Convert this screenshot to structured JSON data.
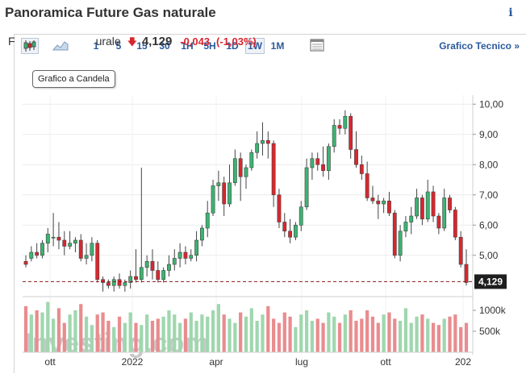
{
  "header": {
    "title": "Panoramica Future Gas naturale",
    "info_icon": "i"
  },
  "toolbar": {
    "candle_icon": "candlestick-chart-icon",
    "area_icon": "area-chart-icon",
    "timeframes": [
      "1",
      "5",
      "15",
      "30",
      "1H",
      "5H",
      "1D",
      "1W",
      "1M"
    ],
    "active_timeframe": "1W",
    "table_icon": "table-view-icon",
    "tech_link": "Grafico Tecnico »"
  },
  "tooltip": "Grafico a Candela",
  "quote": {
    "name_visible_start": "F",
    "name_visible_end": "urale",
    "last": "4,129",
    "change": "-0,043",
    "change_pct": "(-1,03%)",
    "direction": "down"
  },
  "colors": {
    "up": "#3cb371",
    "down": "#d9262e",
    "link": "#2a5a9c",
    "vol_up": "#9fd7ae",
    "vol_down": "#e98c8f"
  },
  "watermark": "Investing.com",
  "chart_data": {
    "type": "candlestick",
    "price_axis": {
      "ticks": [
        10,
        9,
        8,
        7,
        6,
        5
      ],
      "tick_labels": [
        "10,00",
        "9,00",
        "8,00",
        "7,00",
        "6,00",
        "5,00"
      ],
      "ylim": [
        3.9,
        10.3
      ]
    },
    "volume_axis": {
      "ticks": [
        1000000,
        500000
      ],
      "tick_labels": [
        "1000k",
        "500k"
      ]
    },
    "x_tick_labels": [
      "ott",
      "2022",
      "apr",
      "lug",
      "ott",
      "202"
    ],
    "last_price_label": "4,129",
    "last_price": 4.129,
    "candles": [
      [
        4.8,
        5.0,
        4.6,
        4.7
      ],
      [
        4.9,
        5.3,
        4.8,
        5.1
      ],
      [
        5.1,
        5.4,
        4.9,
        5.0
      ],
      [
        5.0,
        5.5,
        4.9,
        5.4
      ],
      [
        5.4,
        5.9,
        5.1,
        5.7
      ],
      [
        5.6,
        6.4,
        5.3,
        5.6
      ],
      [
        5.6,
        6.1,
        5.2,
        5.5
      ],
      [
        5.5,
        5.8,
        5.0,
        5.3
      ],
      [
        5.3,
        5.8,
        5.2,
        5.4
      ],
      [
        5.4,
        5.6,
        5.1,
        5.5
      ],
      [
        5.5,
        5.7,
        4.8,
        4.9
      ],
      [
        4.9,
        5.4,
        4.7,
        5.0
      ],
      [
        5.0,
        5.6,
        4.8,
        5.4
      ],
      [
        5.4,
        5.5,
        4.1,
        4.2
      ],
      [
        4.2,
        4.3,
        3.8,
        4.1
      ],
      [
        4.1,
        4.2,
        3.9,
        4.0
      ],
      [
        4.0,
        4.3,
        3.8,
        4.2
      ],
      [
        4.2,
        4.4,
        3.9,
        4.0
      ],
      [
        4.0,
        4.2,
        3.8,
        4.1
      ],
      [
        4.1,
        4.5,
        3.9,
        4.3
      ],
      [
        4.3,
        5.2,
        4.1,
        4.2
      ],
      [
        4.2,
        7.9,
        4.1,
        4.6
      ],
      [
        4.6,
        5.0,
        4.3,
        4.8
      ],
      [
        4.8,
        5.2,
        4.2,
        4.5
      ],
      [
        4.5,
        4.8,
        4.1,
        4.2
      ],
      [
        4.2,
        4.6,
        4.1,
        4.5
      ],
      [
        4.5,
        5.0,
        4.3,
        4.7
      ],
      [
        4.7,
        5.2,
        4.5,
        4.9
      ],
      [
        4.9,
        5.4,
        4.6,
        5.1
      ],
      [
        5.1,
        5.3,
        4.7,
        4.9
      ],
      [
        4.9,
        5.2,
        4.8,
        5.0
      ],
      [
        5.0,
        5.8,
        4.8,
        5.5
      ],
      [
        5.5,
        6.0,
        5.3,
        5.9
      ],
      [
        5.9,
        6.8,
        5.6,
        6.4
      ],
      [
        6.4,
        7.5,
        6.3,
        7.3
      ],
      [
        7.3,
        7.8,
        6.8,
        7.4
      ],
      [
        7.4,
        7.6,
        6.3,
        6.7
      ],
      [
        6.7,
        8.0,
        6.6,
        7.4
      ],
      [
        7.4,
        8.5,
        7.3,
        8.2
      ],
      [
        8.2,
        8.4,
        6.8,
        7.6
      ],
      [
        7.6,
        8.0,
        7.2,
        7.9
      ],
      [
        7.9,
        8.5,
        7.8,
        8.4
      ],
      [
        8.4,
        9.1,
        8.2,
        8.7
      ],
      [
        8.7,
        9.4,
        8.3,
        8.8
      ],
      [
        8.8,
        9.1,
        8.2,
        8.7
      ],
      [
        8.7,
        8.8,
        6.6,
        7.0
      ],
      [
        7.0,
        7.2,
        5.9,
        6.1
      ],
      [
        6.1,
        6.4,
        5.6,
        5.8
      ],
      [
        5.8,
        6.2,
        5.4,
        5.6
      ],
      [
        5.6,
        6.1,
        5.5,
        6.0
      ],
      [
        6.0,
        6.8,
        5.8,
        6.6
      ],
      [
        6.6,
        8.2,
        6.5,
        7.9
      ],
      [
        7.9,
        8.4,
        7.5,
        8.2
      ],
      [
        8.2,
        8.4,
        7.8,
        8.0
      ],
      [
        8.0,
        8.6,
        7.6,
        7.8
      ],
      [
        7.8,
        8.7,
        7.5,
        8.6
      ],
      [
        8.6,
        9.5,
        8.4,
        9.3
      ],
      [
        9.3,
        9.5,
        9.0,
        9.2
      ],
      [
        9.2,
        9.8,
        9.0,
        9.6
      ],
      [
        9.6,
        9.7,
        8.2,
        8.5
      ],
      [
        8.5,
        9.1,
        7.9,
        8.0
      ],
      [
        8.0,
        8.3,
        7.5,
        7.7
      ],
      [
        7.7,
        8.1,
        6.8,
        6.9
      ],
      [
        6.9,
        7.3,
        6.7,
        6.8
      ],
      [
        6.8,
        7.0,
        6.2,
        6.7
      ],
      [
        6.7,
        6.9,
        6.4,
        6.8
      ],
      [
        6.8,
        7.1,
        6.3,
        6.4
      ],
      [
        6.4,
        6.5,
        4.9,
        5.0
      ],
      [
        5.0,
        6.0,
        4.8,
        5.8
      ],
      [
        5.8,
        6.3,
        5.6,
        6.1
      ],
      [
        6.1,
        6.6,
        5.7,
        6.3
      ],
      [
        6.3,
        7.2,
        6.2,
        6.9
      ],
      [
        6.9,
        7.0,
        6.0,
        6.2
      ],
      [
        6.2,
        7.5,
        6.1,
        7.1
      ],
      [
        7.1,
        7.3,
        6.1,
        6.3
      ],
      [
        6.3,
        6.4,
        5.7,
        5.9
      ],
      [
        5.9,
        7.2,
        5.8,
        6.9
      ],
      [
        6.9,
        7.0,
        6.4,
        6.5
      ],
      [
        6.5,
        6.6,
        5.5,
        5.6
      ],
      [
        5.6,
        5.8,
        4.6,
        4.7
      ],
      [
        4.7,
        5.2,
        4.0,
        4.1
      ]
    ],
    "volume": [
      1100000,
      900000,
      1000000,
      950000,
      1200000,
      800000,
      1050000,
      700000,
      900000,
      1000000,
      1150000,
      850000,
      650000,
      900000,
      950000,
      750000,
      600000,
      850000,
      700000,
      950000,
      700000,
      650000,
      900000,
      750000,
      800000,
      850000,
      1000000,
      900000,
      700000,
      800000,
      950000,
      750000,
      900000,
      850000,
      1000000,
      1150000,
      900000,
      800000,
      700000,
      950000,
      850000,
      1050000,
      750000,
      900000,
      1100000,
      800000,
      700000,
      950000,
      850000,
      600000,
      900000,
      1000000,
      750000,
      800000,
      700000,
      950000,
      850000,
      700000,
      900000,
      1000000,
      750000,
      800000,
      1000000,
      850000,
      700000,
      900000,
      950000,
      800000,
      750000,
      1050000,
      700000,
      850000,
      900000,
      800000,
      700000,
      650000,
      800000,
      850000,
      900000,
      600000,
      700000
    ]
  }
}
